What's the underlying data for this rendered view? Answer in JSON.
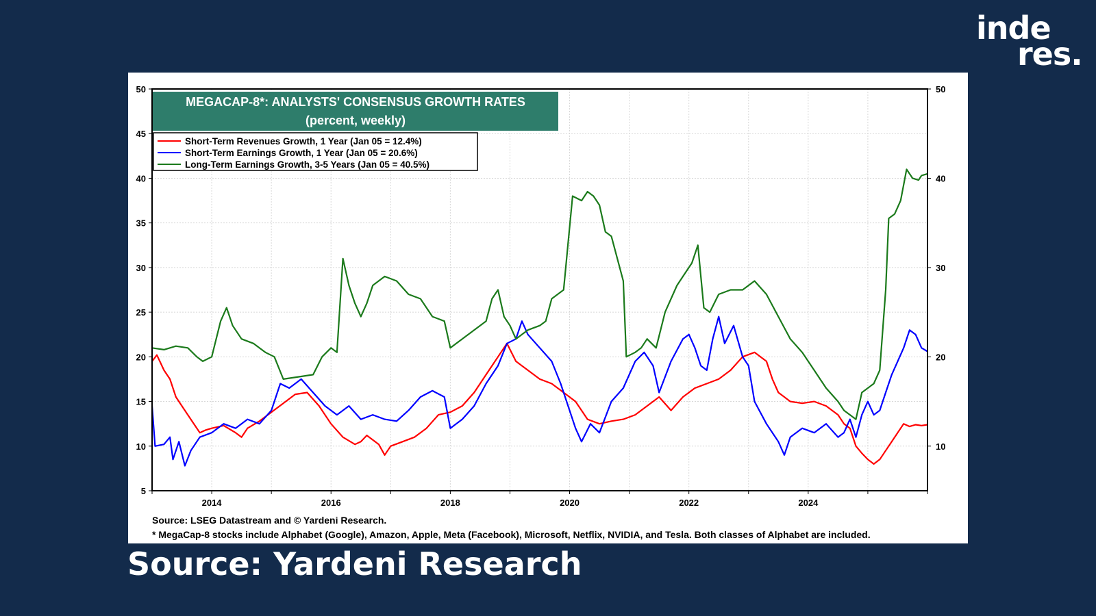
{
  "logo": {
    "line1": "inde",
    "line2": "res."
  },
  "caption": "Source: Yardeni Research",
  "chart_data": {
    "type": "line",
    "title": "MEGACAP-8*: ANALYSTS' CONSENSUS GROWTH RATES",
    "subtitle": "(percent, weekly)",
    "title_bg": "#2e7d6b",
    "xlabel": "",
    "ylabel": "",
    "xlim": [
      2013.0,
      2026.0
    ],
    "ylim": [
      5,
      50
    ],
    "xticks": [
      2014,
      2016,
      2018,
      2020,
      2022,
      2024
    ],
    "yticks": [
      5,
      10,
      15,
      20,
      25,
      30,
      35,
      40,
      45,
      50
    ],
    "yticks_right": [
      10,
      20,
      30,
      40,
      50
    ],
    "grid": true,
    "legend_position": "top-left",
    "series": [
      {
        "name": "Short-Term Revenues Growth, 1 Year (Jan 05 = 12.4%)",
        "color": "#ff0000",
        "points": [
          [
            2013.0,
            19.5
          ],
          [
            2013.08,
            20.2
          ],
          [
            2013.2,
            18.5
          ],
          [
            2013.3,
            17.5
          ],
          [
            2013.4,
            15.5
          ],
          [
            2013.5,
            14.5
          ],
          [
            2013.6,
            13.5
          ],
          [
            2013.7,
            12.5
          ],
          [
            2013.8,
            11.5
          ],
          [
            2013.9,
            11.8
          ],
          [
            2014.0,
            12.0
          ],
          [
            2014.2,
            12.3
          ],
          [
            2014.4,
            11.5
          ],
          [
            2014.5,
            11.0
          ],
          [
            2014.6,
            12.0
          ],
          [
            2014.8,
            12.8
          ],
          [
            2015.0,
            13.8
          ],
          [
            2015.2,
            14.8
          ],
          [
            2015.4,
            15.8
          ],
          [
            2015.6,
            16.0
          ],
          [
            2015.8,
            14.5
          ],
          [
            2016.0,
            12.5
          ],
          [
            2016.2,
            11.0
          ],
          [
            2016.4,
            10.2
          ],
          [
            2016.5,
            10.5
          ],
          [
            2016.6,
            11.2
          ],
          [
            2016.8,
            10.2
          ],
          [
            2016.9,
            9.0
          ],
          [
            2017.0,
            10.0
          ],
          [
            2017.2,
            10.5
          ],
          [
            2017.4,
            11.0
          ],
          [
            2017.6,
            12.0
          ],
          [
            2017.8,
            13.5
          ],
          [
            2018.0,
            13.8
          ],
          [
            2018.2,
            14.5
          ],
          [
            2018.4,
            16.0
          ],
          [
            2018.6,
            18.0
          ],
          [
            2018.8,
            20.0
          ],
          [
            2018.95,
            21.5
          ],
          [
            2019.1,
            19.5
          ],
          [
            2019.3,
            18.5
          ],
          [
            2019.5,
            17.5
          ],
          [
            2019.7,
            17.0
          ],
          [
            2019.9,
            16.0
          ],
          [
            2020.1,
            15.0
          ],
          [
            2020.3,
            13.0
          ],
          [
            2020.5,
            12.5
          ],
          [
            2020.7,
            12.8
          ],
          [
            2020.9,
            13.0
          ],
          [
            2021.1,
            13.5
          ],
          [
            2021.3,
            14.5
          ],
          [
            2021.5,
            15.5
          ],
          [
            2021.7,
            14.0
          ],
          [
            2021.9,
            15.5
          ],
          [
            2022.1,
            16.5
          ],
          [
            2022.3,
            17.0
          ],
          [
            2022.5,
            17.5
          ],
          [
            2022.7,
            18.5
          ],
          [
            2022.9,
            20.0
          ],
          [
            2023.1,
            20.5
          ],
          [
            2023.3,
            19.5
          ],
          [
            2023.4,
            17.5
          ],
          [
            2023.5,
            16.0
          ],
          [
            2023.7,
            15.0
          ],
          [
            2023.9,
            14.8
          ],
          [
            2024.1,
            15.0
          ],
          [
            2024.3,
            14.5
          ],
          [
            2024.5,
            13.5
          ],
          [
            2024.6,
            12.5
          ],
          [
            2024.7,
            12.0
          ],
          [
            2024.8,
            10.0
          ],
          [
            2024.9,
            9.2
          ],
          [
            2025.0,
            8.5
          ],
          [
            2025.1,
            8.0
          ],
          [
            2025.2,
            8.5
          ],
          [
            2025.3,
            9.5
          ],
          [
            2025.4,
            10.5
          ],
          [
            2025.5,
            11.5
          ],
          [
            2025.6,
            12.5
          ],
          [
            2025.7,
            12.2
          ],
          [
            2025.8,
            12.4
          ],
          [
            2025.9,
            12.3
          ],
          [
            2026.0,
            12.4
          ]
        ]
      },
      {
        "name": "Short-Term Earnings Growth, 1 Year (Jan 05 = 20.6%)",
        "color": "#0000ff",
        "points": [
          [
            2013.0,
            14.5
          ],
          [
            2013.05,
            10.0
          ],
          [
            2013.2,
            10.2
          ],
          [
            2013.3,
            11.0
          ],
          [
            2013.35,
            8.5
          ],
          [
            2013.45,
            10.5
          ],
          [
            2013.55,
            7.8
          ],
          [
            2013.65,
            9.5
          ],
          [
            2013.8,
            11.0
          ],
          [
            2014.0,
            11.5
          ],
          [
            2014.2,
            12.5
          ],
          [
            2014.4,
            12.0
          ],
          [
            2014.6,
            13.0
          ],
          [
            2014.8,
            12.5
          ],
          [
            2015.0,
            14.0
          ],
          [
            2015.15,
            17.0
          ],
          [
            2015.3,
            16.5
          ],
          [
            2015.5,
            17.5
          ],
          [
            2015.7,
            16.0
          ],
          [
            2015.9,
            14.5
          ],
          [
            2016.1,
            13.5
          ],
          [
            2016.3,
            14.5
          ],
          [
            2016.5,
            13.0
          ],
          [
            2016.7,
            13.5
          ],
          [
            2016.9,
            13.0
          ],
          [
            2017.1,
            12.8
          ],
          [
            2017.3,
            14.0
          ],
          [
            2017.5,
            15.5
          ],
          [
            2017.7,
            16.2
          ],
          [
            2017.9,
            15.5
          ],
          [
            2018.0,
            12.0
          ],
          [
            2018.2,
            13.0
          ],
          [
            2018.4,
            14.5
          ],
          [
            2018.6,
            17.0
          ],
          [
            2018.8,
            19.0
          ],
          [
            2018.95,
            21.5
          ],
          [
            2019.1,
            22.0
          ],
          [
            2019.2,
            24.0
          ],
          [
            2019.3,
            22.5
          ],
          [
            2019.5,
            21.0
          ],
          [
            2019.7,
            19.5
          ],
          [
            2019.85,
            17.0
          ],
          [
            2020.0,
            14.0
          ],
          [
            2020.1,
            12.0
          ],
          [
            2020.2,
            10.5
          ],
          [
            2020.35,
            12.5
          ],
          [
            2020.5,
            11.5
          ],
          [
            2020.7,
            15.0
          ],
          [
            2020.9,
            16.5
          ],
          [
            2021.1,
            19.5
          ],
          [
            2021.25,
            20.5
          ],
          [
            2021.4,
            19.0
          ],
          [
            2021.5,
            16.0
          ],
          [
            2021.7,
            19.5
          ],
          [
            2021.9,
            22.0
          ],
          [
            2022.0,
            22.5
          ],
          [
            2022.1,
            21.0
          ],
          [
            2022.2,
            19.0
          ],
          [
            2022.3,
            18.5
          ],
          [
            2022.4,
            22.0
          ],
          [
            2022.5,
            24.5
          ],
          [
            2022.6,
            21.5
          ],
          [
            2022.75,
            23.5
          ],
          [
            2022.9,
            20.0
          ],
          [
            2023.0,
            19.0
          ],
          [
            2023.1,
            15.0
          ],
          [
            2023.3,
            12.5
          ],
          [
            2023.5,
            10.5
          ],
          [
            2023.6,
            9.0
          ],
          [
            2023.7,
            11.0
          ],
          [
            2023.9,
            12.0
          ],
          [
            2024.1,
            11.5
          ],
          [
            2024.3,
            12.5
          ],
          [
            2024.5,
            11.0
          ],
          [
            2024.6,
            11.5
          ],
          [
            2024.7,
            13.0
          ],
          [
            2024.8,
            11.0
          ],
          [
            2024.9,
            13.5
          ],
          [
            2025.0,
            15.0
          ],
          [
            2025.1,
            13.5
          ],
          [
            2025.2,
            14.0
          ],
          [
            2025.3,
            16.0
          ],
          [
            2025.4,
            18.0
          ],
          [
            2025.5,
            19.5
          ],
          [
            2025.6,
            21.0
          ],
          [
            2025.7,
            23.0
          ],
          [
            2025.8,
            22.5
          ],
          [
            2025.9,
            21.0
          ],
          [
            2026.0,
            20.6
          ]
        ]
      },
      {
        "name": "Long-Term Earnings Growth, 3-5 Years (Jan 05 = 40.5%)",
        "color": "#1b7a1b",
        "points": [
          [
            2013.0,
            21.0
          ],
          [
            2013.2,
            20.8
          ],
          [
            2013.4,
            21.2
          ],
          [
            2013.6,
            21.0
          ],
          [
            2013.75,
            20.0
          ],
          [
            2013.85,
            19.5
          ],
          [
            2014.0,
            20.0
          ],
          [
            2014.15,
            24.0
          ],
          [
            2014.25,
            25.5
          ],
          [
            2014.35,
            23.5
          ],
          [
            2014.5,
            22.0
          ],
          [
            2014.7,
            21.5
          ],
          [
            2014.9,
            20.5
          ],
          [
            2015.05,
            20.0
          ],
          [
            2015.2,
            17.5
          ],
          [
            2015.5,
            17.8
          ],
          [
            2015.7,
            18.0
          ],
          [
            2015.85,
            20.0
          ],
          [
            2016.0,
            21.0
          ],
          [
            2016.1,
            20.5
          ],
          [
            2016.2,
            31.0
          ],
          [
            2016.3,
            28.0
          ],
          [
            2016.4,
            26.0
          ],
          [
            2016.5,
            24.5
          ],
          [
            2016.6,
            26.0
          ],
          [
            2016.7,
            28.0
          ],
          [
            2016.9,
            29.0
          ],
          [
            2017.1,
            28.5
          ],
          [
            2017.3,
            27.0
          ],
          [
            2017.5,
            26.5
          ],
          [
            2017.7,
            24.5
          ],
          [
            2017.9,
            24.0
          ],
          [
            2018.0,
            21.0
          ],
          [
            2018.2,
            22.0
          ],
          [
            2018.4,
            23.0
          ],
          [
            2018.6,
            24.0
          ],
          [
            2018.7,
            26.5
          ],
          [
            2018.8,
            27.5
          ],
          [
            2018.9,
            24.5
          ],
          [
            2019.0,
            23.5
          ],
          [
            2019.1,
            22.0
          ],
          [
            2019.3,
            23.0
          ],
          [
            2019.5,
            23.5
          ],
          [
            2019.6,
            24.0
          ],
          [
            2019.7,
            26.5
          ],
          [
            2019.9,
            27.5
          ],
          [
            2020.05,
            38.0
          ],
          [
            2020.2,
            37.5
          ],
          [
            2020.3,
            38.5
          ],
          [
            2020.4,
            38.0
          ],
          [
            2020.5,
            37.0
          ],
          [
            2020.6,
            34.0
          ],
          [
            2020.7,
            33.5
          ],
          [
            2020.8,
            31.0
          ],
          [
            2020.9,
            28.5
          ],
          [
            2020.95,
            20.0
          ],
          [
            2021.1,
            20.5
          ],
          [
            2021.2,
            21.0
          ],
          [
            2021.3,
            22.0
          ],
          [
            2021.45,
            21.0
          ],
          [
            2021.6,
            25.0
          ],
          [
            2021.8,
            28.0
          ],
          [
            2021.95,
            29.5
          ],
          [
            2022.05,
            30.5
          ],
          [
            2022.15,
            32.5
          ],
          [
            2022.25,
            25.5
          ],
          [
            2022.35,
            25.0
          ],
          [
            2022.5,
            27.0
          ],
          [
            2022.7,
            27.5
          ],
          [
            2022.9,
            27.5
          ],
          [
            2023.1,
            28.5
          ],
          [
            2023.3,
            27.0
          ],
          [
            2023.5,
            24.5
          ],
          [
            2023.7,
            22.0
          ],
          [
            2023.9,
            20.5
          ],
          [
            2024.1,
            18.5
          ],
          [
            2024.3,
            16.5
          ],
          [
            2024.5,
            15.0
          ],
          [
            2024.6,
            14.0
          ],
          [
            2024.7,
            13.5
          ],
          [
            2024.8,
            13.0
          ],
          [
            2024.9,
            16.0
          ],
          [
            2025.0,
            16.5
          ],
          [
            2025.1,
            17.0
          ],
          [
            2025.2,
            18.5
          ],
          [
            2025.3,
            27.5
          ],
          [
            2025.35,
            35.5
          ],
          [
            2025.45,
            36.0
          ],
          [
            2025.55,
            37.5
          ],
          [
            2025.65,
            41.0
          ],
          [
            2025.75,
            40.0
          ],
          [
            2025.85,
            39.8
          ],
          [
            2025.9,
            40.3
          ],
          [
            2026.0,
            40.5
          ]
        ]
      }
    ],
    "source_note": "Source: LSEG Datastream and © Yardeni Research.",
    "footnote": "* MegaCap-8 stocks include Alphabet (Google), Amazon, Apple, Meta (Facebook), Microsoft, Netflix, NVIDIA, and Tesla. Both classes of Alphabet are included."
  }
}
